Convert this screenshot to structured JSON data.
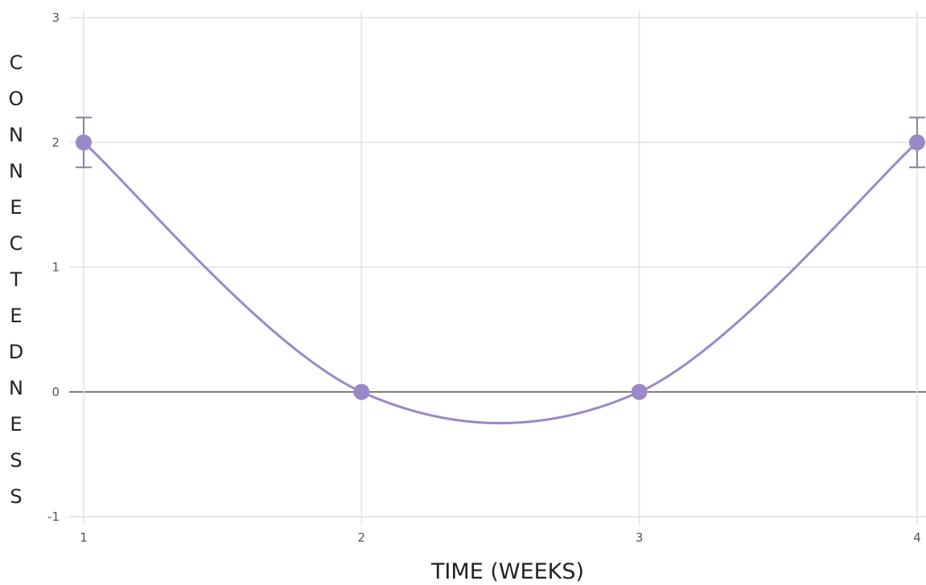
{
  "chart_data": {
    "type": "line",
    "title": "",
    "xlabel": "TIME (WEEKS)",
    "ylabel": "CONNECTEDNESS",
    "x": [
      1,
      2,
      3,
      4
    ],
    "series": [
      {
        "values": [
          2,
          0,
          0,
          2
        ],
        "error": [
          0.2,
          0,
          0,
          0.2
        ],
        "color": "#9b88c8"
      }
    ],
    "xticks": [
      1,
      2,
      3,
      4
    ],
    "yticks": [
      -1,
      0,
      1,
      2,
      3
    ],
    "xlim": [
      1,
      4
    ],
    "ylim": [
      -1,
      3
    ],
    "grid": true,
    "smooth": true
  },
  "colors": {
    "series": "#9b88c8",
    "errorbar": "#8a80a0",
    "grid": "#e2e2e2",
    "zero_line": "#555555"
  }
}
